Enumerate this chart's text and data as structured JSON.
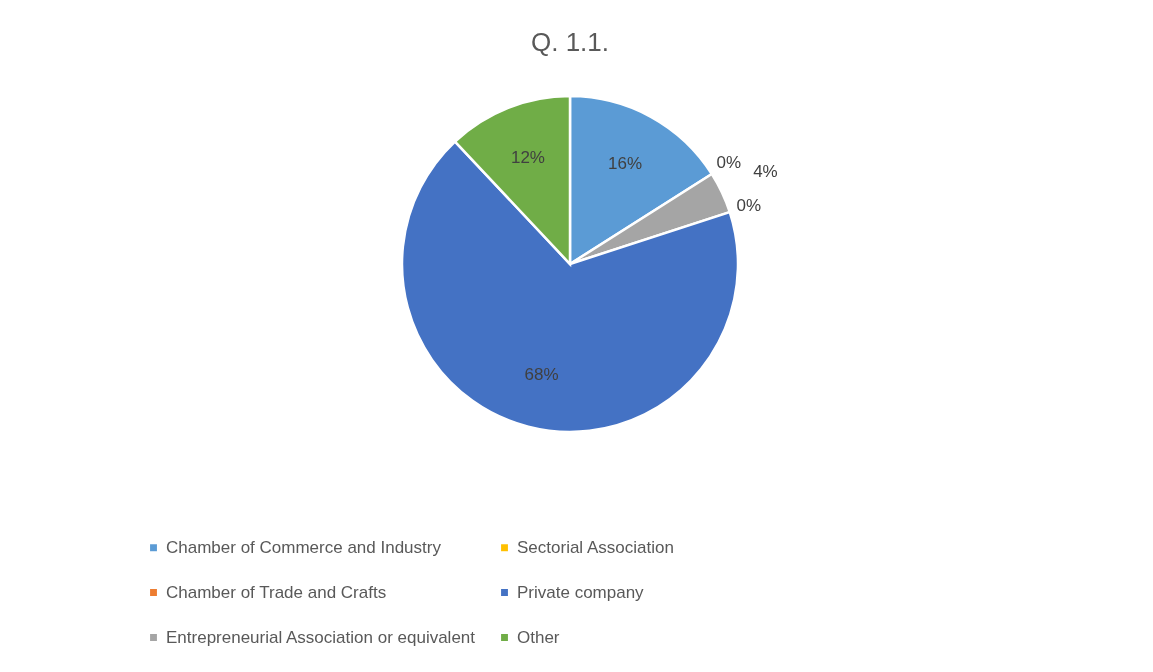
{
  "chart_data": {
    "type": "pie",
    "title": "Q. 1.1.",
    "categories": [
      "Chamber of Commerce and Industry",
      "Chamber of Trade and Crafts",
      "Entrepreneurial Association or equivalent",
      "Sectorial Association",
      "Private company",
      "Other"
    ],
    "values": [
      16,
      0,
      4,
      0,
      68,
      12
    ],
    "value_labels": [
      "16%",
      "0%",
      "4%",
      "0%",
      "68%",
      "12%"
    ],
    "colors": [
      "#5b9bd5",
      "#ed7d31",
      "#a5a5a5",
      "#ffc000",
      "#4472c4",
      "#70ad47"
    ],
    "legend": "bottom"
  }
}
